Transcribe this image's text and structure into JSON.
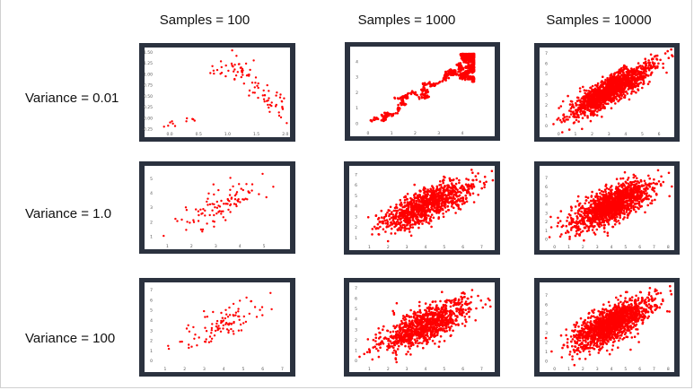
{
  "column_headers": [
    "Samples = 100",
    "Samples = 1000",
    "Samples = 10000"
  ],
  "row_labels": [
    "Variance = 0.01",
    "Variance = 1.0",
    "Variance = 100"
  ],
  "colors": {
    "points": "#ff0000",
    "panel_border": "#2b323f",
    "plot_bg": "#ffffff",
    "tick_text": "#555555"
  },
  "chart_data": [
    {
      "type": "scatter",
      "title": "",
      "samples": 100,
      "variance": 0.01,
      "xlim": [
        -0.25,
        2.05
      ],
      "ylim": [
        -0.25,
        1.55
      ],
      "xticks": [
        "0.0",
        "0.5",
        "1.0",
        "1.5",
        "2.0"
      ],
      "yticks": [
        "-0.25",
        "0.00",
        "0.25",
        "0.50",
        "0.75",
        "1.00",
        "1.25",
        "1.50"
      ],
      "shape": "curve"
    },
    {
      "type": "scatter",
      "title": "",
      "samples": 1000,
      "variance": 0.01,
      "xlim": [
        -0.3,
        5.3
      ],
      "ylim": [
        -0.3,
        4.8
      ],
      "xticks": [
        "0",
        "1",
        "2",
        "3",
        "4"
      ],
      "yticks": [
        "0",
        "1",
        "2",
        "3",
        "4"
      ],
      "shape": "walk"
    },
    {
      "type": "scatter",
      "title": "",
      "samples": 10000,
      "variance": 0.01,
      "xlim": [
        -0.5,
        6.8
      ],
      "ylim": [
        -0.3,
        7.3
      ],
      "xticks": [
        "0",
        "1",
        "2",
        "3",
        "4",
        "5",
        "6"
      ],
      "yticks": [
        "0",
        "1",
        "2",
        "3",
        "4",
        "5",
        "6",
        "7"
      ],
      "shape": "blob"
    },
    {
      "type": "scatter",
      "title": "",
      "samples": 100,
      "variance": 1.0,
      "xlim": [
        0.5,
        6.0
      ],
      "ylim": [
        0.7,
        5.7
      ],
      "xticks": [
        "1",
        "2",
        "3",
        "4",
        "5"
      ],
      "yticks": [
        "1",
        "2",
        "3",
        "4",
        "5"
      ],
      "shape": "cloud"
    },
    {
      "type": "scatter",
      "title": "",
      "samples": 1000,
      "variance": 1.0,
      "xlim": [
        0.5,
        7.6
      ],
      "ylim": [
        0.6,
        7.6
      ],
      "xticks": [
        "1",
        "2",
        "3",
        "4",
        "5",
        "6",
        "7"
      ],
      "yticks": [
        "1",
        "2",
        "3",
        "4",
        "5",
        "6",
        "7"
      ],
      "shape": "cloud"
    },
    {
      "type": "scatter",
      "title": "",
      "samples": 10000,
      "variance": 1.0,
      "xlim": [
        -0.3,
        8.3
      ],
      "ylim": [
        -0.3,
        8.1
      ],
      "xticks": [
        "0",
        "1",
        "2",
        "3",
        "4",
        "5",
        "6",
        "7",
        "8"
      ],
      "yticks": [
        "0",
        "1",
        "2",
        "3",
        "4",
        "5",
        "6",
        "7"
      ],
      "shape": "cloud"
    },
    {
      "type": "scatter",
      "title": "",
      "samples": 100,
      "variance": 100,
      "xlim": [
        0.5,
        7.3
      ],
      "ylim": [
        -0.3,
        7.5
      ],
      "xticks": [
        "1",
        "2",
        "3",
        "4",
        "5",
        "6",
        "7"
      ],
      "yticks": [
        "0",
        "1",
        "2",
        "3",
        "4",
        "5",
        "6",
        "7"
      ],
      "shape": "cloud"
    },
    {
      "type": "scatter",
      "title": "",
      "samples": 1000,
      "variance": 100,
      "xlim": [
        0.5,
        7.6
      ],
      "ylim": [
        -0.3,
        7.3
      ],
      "xticks": [
        "1",
        "2",
        "3",
        "4",
        "5",
        "6",
        "7"
      ],
      "yticks": [
        "0",
        "1",
        "2",
        "3",
        "4",
        "5",
        "6",
        "7"
      ],
      "shape": "cloud"
    },
    {
      "type": "scatter",
      "title": "",
      "samples": 10000,
      "variance": 100,
      "xlim": [
        -0.3,
        8.3
      ],
      "ylim": [
        -0.3,
        8.1
      ],
      "xticks": [
        "0",
        "1",
        "2",
        "3",
        "4",
        "5",
        "6",
        "7",
        "8"
      ],
      "yticks": [
        "0",
        "1",
        "2",
        "3",
        "4",
        "5",
        "6",
        "7"
      ],
      "shape": "cloud"
    }
  ]
}
